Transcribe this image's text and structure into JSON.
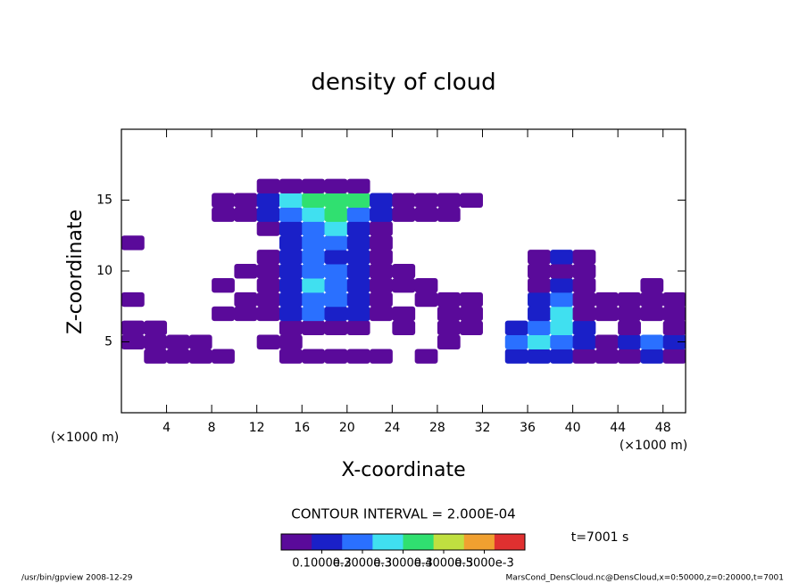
{
  "chart_data": {
    "type": "heatmap",
    "title": "density of cloud",
    "x_label": "X-coordinate",
    "y_label": "Z-coordinate",
    "x_unit_label": "(×1000 m)",
    "y_unit_label": "(×1000 m)",
    "xlim": [
      0,
      50
    ],
    "ylim": [
      0,
      20
    ],
    "xticks": [
      4,
      8,
      12,
      16,
      20,
      24,
      28,
      32,
      36,
      40,
      44,
      48
    ],
    "yticks": [
      5,
      10,
      15
    ],
    "cell_width": 2,
    "cell_height": 1,
    "x": [
      1,
      3,
      5,
      7,
      9,
      11,
      13,
      15,
      17,
      19,
      21,
      23,
      25,
      27,
      29,
      31,
      33,
      35,
      37,
      39,
      41,
      43,
      45,
      47,
      49
    ],
    "y": [
      4,
      5,
      6,
      7,
      8,
      9,
      10,
      11,
      12,
      13,
      14,
      15,
      16
    ],
    "values": [
      [
        null,
        3e-05,
        3e-05,
        3e-05,
        3e-05,
        null,
        null,
        3e-05,
        3e-05,
        3e-05,
        3e-05,
        3e-05,
        null,
        3e-05,
        null,
        null,
        null,
        8e-05,
        8e-05,
        8e-05,
        3e-05,
        3e-05,
        3e-05,
        8e-05,
        3e-05
      ],
      [
        3e-05,
        3e-05,
        3e-05,
        3e-05,
        null,
        null,
        3e-05,
        3e-05,
        null,
        null,
        null,
        null,
        null,
        null,
        3e-05,
        null,
        null,
        0.00015,
        0.00024,
        0.00015,
        8e-05,
        3e-05,
        8e-05,
        0.00015,
        8e-05
      ],
      [
        3e-05,
        3e-05,
        null,
        null,
        null,
        null,
        null,
        3e-05,
        3e-05,
        3e-05,
        3e-05,
        null,
        3e-05,
        null,
        3e-05,
        3e-05,
        null,
        8e-05,
        0.00015,
        0.00024,
        8e-05,
        null,
        3e-05,
        null,
        3e-05
      ],
      [
        null,
        null,
        null,
        null,
        3e-05,
        3e-05,
        3e-05,
        8e-05,
        0.00015,
        8e-05,
        8e-05,
        3e-05,
        3e-05,
        null,
        3e-05,
        3e-05,
        null,
        null,
        8e-05,
        0.00024,
        3e-05,
        3e-05,
        3e-05,
        3e-05,
        3e-05
      ],
      [
        3e-05,
        null,
        null,
        null,
        null,
        3e-05,
        3e-05,
        8e-05,
        0.00015,
        0.00015,
        8e-05,
        3e-05,
        null,
        3e-05,
        3e-05,
        3e-05,
        null,
        null,
        8e-05,
        0.00015,
        3e-05,
        3e-05,
        3e-05,
        3e-05,
        3e-05
      ],
      [
        null,
        null,
        null,
        null,
        3e-05,
        null,
        3e-05,
        8e-05,
        0.00024,
        0.00015,
        8e-05,
        3e-05,
        3e-05,
        3e-05,
        null,
        null,
        null,
        null,
        3e-05,
        8e-05,
        3e-05,
        null,
        null,
        3e-05,
        null
      ],
      [
        null,
        null,
        null,
        null,
        null,
        3e-05,
        3e-05,
        8e-05,
        0.00015,
        0.00015,
        8e-05,
        3e-05,
        3e-05,
        null,
        null,
        null,
        null,
        null,
        3e-05,
        3e-05,
        3e-05,
        null,
        null,
        null,
        null
      ],
      [
        null,
        null,
        null,
        null,
        null,
        null,
        3e-05,
        8e-05,
        0.00015,
        8e-05,
        8e-05,
        3e-05,
        null,
        null,
        null,
        null,
        null,
        null,
        3e-05,
        8e-05,
        3e-05,
        null,
        null,
        null,
        null
      ],
      [
        3e-05,
        null,
        null,
        null,
        null,
        null,
        null,
        8e-05,
        0.00015,
        0.00015,
        8e-05,
        3e-05,
        null,
        null,
        null,
        null,
        null,
        null,
        null,
        null,
        null,
        null,
        null,
        null,
        null
      ],
      [
        null,
        null,
        null,
        null,
        null,
        null,
        3e-05,
        8e-05,
        0.00015,
        0.00024,
        8e-05,
        3e-05,
        null,
        null,
        null,
        null,
        null,
        null,
        null,
        null,
        null,
        null,
        null,
        null,
        null
      ],
      [
        null,
        null,
        null,
        null,
        3e-05,
        3e-05,
        8e-05,
        0.00015,
        0.00024,
        0.00032,
        0.00015,
        8e-05,
        3e-05,
        3e-05,
        3e-05,
        null,
        null,
        null,
        null,
        null,
        null,
        null,
        null,
        null,
        null
      ],
      [
        null,
        null,
        null,
        null,
        3e-05,
        3e-05,
        8e-05,
        0.00024,
        0.00032,
        0.00032,
        0.00032,
        8e-05,
        3e-05,
        3e-05,
        3e-05,
        3e-05,
        null,
        null,
        null,
        null,
        null,
        null,
        null,
        null,
        null
      ],
      [
        null,
        null,
        null,
        null,
        null,
        null,
        3e-05,
        3e-05,
        3e-05,
        3e-05,
        3e-05,
        null,
        null,
        null,
        null,
        null,
        null,
        null,
        null,
        null,
        null,
        null,
        null,
        null,
        null
      ]
    ],
    "colors": [
      "#5a0a9a",
      "#1a20c8",
      "#2a70ff",
      "#40e0f0",
      "#30e070",
      "#c0e040",
      "#f0a030",
      "#e03030"
    ],
    "clim": [
      0,
      0.0006
    ],
    "colorbar_ticks": [
      {
        "value": 0.0001,
        "label": "0.1000e-3"
      },
      {
        "value": 0.0002,
        "label": "0.2000e-3"
      },
      {
        "value": 0.0003,
        "label": "0.3000e-3"
      },
      {
        "value": 0.0004,
        "label": "0.4000e-3"
      },
      {
        "value": 0.0005,
        "label": "0.5000e-3"
      }
    ],
    "contour_interval_label": "CONTOUR INTERVAL = 2.000E-04",
    "time_label": "t=7001 s",
    "footer_left": "/usr/bin/gpview  2008-12-29",
    "footer_right": "MarsCond_DensCloud.nc@DensCloud,x=0:50000,z=0:20000,t=7001"
  }
}
